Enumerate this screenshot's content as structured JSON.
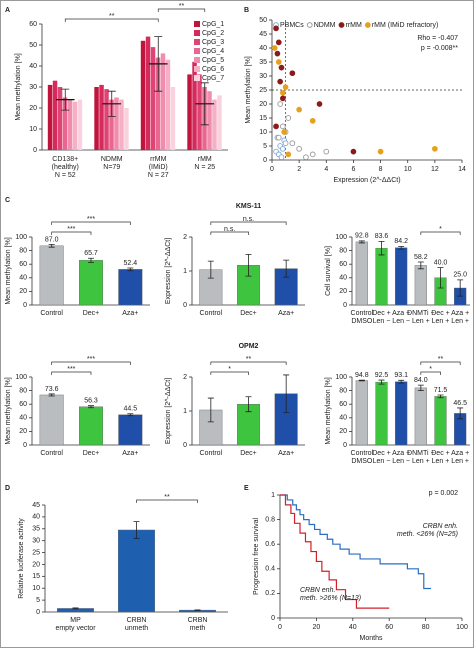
{
  "chart_data": [
    {
      "type": "grouped_bar",
      "panel": "A",
      "ylabel": "Mean methylation [%]",
      "categories": [
        "CD138+\n(healthy)\nN = 52",
        "NDMM\n\nN=79",
        "rrMM\n(IMiD)\nN = 27",
        "rMM\n\nN = 25"
      ],
      "series": [
        {
          "name": "CpG_1",
          "color": "#c0143c",
          "values": [
            31,
            30,
            52,
            36
          ]
        },
        {
          "name": "CpG_2",
          "color": "#d42a5c",
          "values": [
            33,
            31,
            54,
            42
          ]
        },
        {
          "name": "CpG_3",
          "color": "#de4474",
          "values": [
            30,
            29,
            49,
            36
          ]
        },
        {
          "name": "CpG_4",
          "color": "#e8668f",
          "values": [
            25,
            24,
            44,
            30
          ]
        },
        {
          "name": "CpG_5",
          "color": "#f08cad",
          "values": [
            24,
            25,
            46,
            28
          ]
        },
        {
          "name": "CpG_6",
          "color": "#f5b0c6",
          "values": [
            23,
            24,
            43,
            24
          ]
        },
        {
          "name": "CpG_7",
          "color": "#fad2df",
          "values": [
            24,
            20,
            30,
            26
          ]
        }
      ],
      "means": [
        24,
        22,
        41,
        22
      ],
      "errors": [
        5,
        6,
        13,
        10
      ],
      "brackets": [
        {
          "text": "**",
          "between": [
            0,
            2
          ]
        },
        {
          "text": "**",
          "between": [
            2,
            3
          ]
        }
      ],
      "ylim": [
        0,
        60
      ],
      "yticks": [
        0,
        10,
        20,
        30,
        40,
        50,
        60
      ]
    },
    {
      "type": "scatter",
      "panel": "B",
      "ylabel": "Mean methylation [%]",
      "xlabel": "Expression (2^-ΔΔCt)",
      "annotations": [
        "Rho = -0.407",
        "p = -0.008**"
      ],
      "ref_x": 1,
      "ref_y": 25,
      "series": [
        {
          "name": "PBMCs",
          "color": "#7fa8d6",
          "open": true,
          "x": [
            0.3,
            0.5,
            0.6,
            0.8,
            0.9,
            1.0,
            0.4,
            0.7
          ],
          "y": [
            3,
            2,
            5,
            4,
            7,
            6,
            8,
            1
          ]
        },
        {
          "name": "NDMM",
          "color": "#999999",
          "open": true,
          "x": [
            0.5,
            1,
            1.5,
            2,
            0.8,
            3,
            2.5,
            1.2,
            0.6,
            4
          ],
          "y": [
            8,
            10,
            6,
            4,
            12,
            2,
            1,
            15,
            20,
            3
          ]
        },
        {
          "name": "rrMM",
          "color": "#8b1a1a",
          "open": false,
          "x": [
            0.3,
            0.5,
            0.4,
            0.7,
            1.5,
            0.6,
            0.8,
            3.5,
            6,
            0.3
          ],
          "y": [
            47,
            42,
            38,
            33,
            31,
            28,
            22,
            20,
            3,
            12
          ]
        },
        {
          "name": "rMM (IMiD refractory)",
          "color": "#e6a020",
          "open": false,
          "x": [
            0.2,
            0.5,
            1,
            2,
            3,
            8,
            12,
            0.8,
            0.9,
            1.2
          ],
          "y": [
            40,
            35,
            26,
            18,
            14,
            3,
            4,
            24,
            10,
            2
          ]
        }
      ],
      "xlim": [
        0,
        14
      ],
      "xticks": [
        0,
        2,
        4,
        6,
        8,
        10,
        12,
        14
      ],
      "ylim": [
        0,
        50
      ],
      "yticks": [
        0,
        5,
        10,
        15,
        20,
        25,
        30,
        35,
        40,
        45,
        50
      ]
    },
    {
      "type": "bar",
      "panel": "C",
      "ylabel": "Mean methylation [%]",
      "categories": [
        "Control",
        "Dec+",
        "Aza+"
      ],
      "values": [
        87.0,
        65.7,
        52.4
      ],
      "value_labels": [
        "87.0",
        "65.7",
        "52.4"
      ],
      "errors": [
        2,
        3,
        2
      ],
      "colors": [
        "#b9bdc0",
        "#3ec43e",
        "#1f4fa8"
      ],
      "brackets": [
        {
          "text": "***",
          "between": [
            0,
            1
          ]
        },
        {
          "text": "***",
          "between": [
            0,
            2
          ]
        }
      ],
      "ylim": [
        0,
        100
      ],
      "yticks": [
        0,
        20,
        40,
        60,
        80,
        100
      ]
    },
    {
      "type": "bar",
      "title": "KMS-11",
      "ylabel": "Expression [2^-ΔΔCt]",
      "categories": [
        "Control",
        "Dec+",
        "Aza+"
      ],
      "values": [
        1.04,
        1.17,
        1.07
      ],
      "errors": [
        0.25,
        0.32,
        0.25
      ],
      "colors": [
        "#b9bdc0",
        "#3ec43e",
        "#1f4fa8"
      ],
      "brackets": [
        {
          "text": "n.s.",
          "between": [
            0,
            1
          ]
        },
        {
          "text": "n.s.",
          "between": [
            0,
            2
          ]
        }
      ],
      "ylim": [
        0,
        2
      ],
      "yticks": [
        0,
        1,
        2
      ]
    },
    {
      "type": "bar",
      "ylabel": "Cell survival [%]",
      "categories": [
        "Control\nDMSO",
        "Dec +\nLen −",
        "Aza +\nLen −",
        "DNMTi −\nLen +",
        "Dec +\nLen +",
        "Aza +\nLen +"
      ],
      "values": [
        92.8,
        83.6,
        84.2,
        58.2,
        40.0,
        25.0
      ],
      "value_labels": [
        "92.8",
        "83.6",
        "84.2",
        "58.2",
        "40.0",
        "25.0"
      ],
      "errors": [
        1.5,
        10,
        2,
        5,
        15,
        12
      ],
      "colors": [
        "#b9bdc0",
        "#3ec43e",
        "#1f4fa8",
        "#b9bdc0",
        "#3ec43e",
        "#1f4fa8"
      ],
      "brackets": [
        {
          "text": "*",
          "between": [
            3,
            5
          ]
        }
      ],
      "ylim": [
        0,
        100
      ],
      "yticks": [
        0,
        20,
        40,
        60,
        80,
        100
      ]
    },
    {
      "type": "bar",
      "ylabel": "Mean methylation [%]",
      "categories": [
        "Control",
        "Dec+",
        "Aza+"
      ],
      "values": [
        73.6,
        56.3,
        44.5
      ],
      "value_labels": [
        "73.6",
        "56.3",
        "44.5"
      ],
      "errors": [
        1.5,
        1.5,
        1.5
      ],
      "colors": [
        "#b9bdc0",
        "#3ec43e",
        "#1f4fa8"
      ],
      "brackets": [
        {
          "text": "***",
          "between": [
            0,
            1
          ]
        },
        {
          "text": "***",
          "between": [
            0,
            2
          ]
        }
      ],
      "ylim": [
        0,
        100
      ],
      "yticks": [
        0,
        20,
        40,
        60,
        80,
        100
      ]
    },
    {
      "type": "bar",
      "title": "OPM2",
      "ylabel": "Expression [2^-ΔΔCt]",
      "categories": [
        "Control",
        "Dec+",
        "Aza+"
      ],
      "values": [
        1.03,
        1.2,
        1.51
      ],
      "errors": [
        0.35,
        0.22,
        0.55
      ],
      "colors": [
        "#b9bdc0",
        "#3ec43e",
        "#1f4fa8"
      ],
      "brackets": [
        {
          "text": "*",
          "between": [
            0,
            1
          ]
        },
        {
          "text": "**",
          "between": [
            0,
            2
          ]
        }
      ],
      "ylim": [
        0,
        2
      ],
      "yticks": [
        0,
        1,
        2
      ]
    },
    {
      "type": "bar",
      "ylabel": "Mean methylation [%]",
      "categories": [
        "Control\nDMSO",
        "Dec +\nLen −",
        "Aza +\nLen −",
        "DNMTi −\nLen +",
        "Dec +\nLen +",
        "Aza +\nLen +"
      ],
      "values": [
        94.8,
        92.5,
        93.1,
        84.0,
        71.5,
        46.5
      ],
      "value_labels": [
        "94.8",
        "92.5",
        "93.1",
        "84.0",
        "71.5",
        "46.5"
      ],
      "errors": [
        0.5,
        3,
        2,
        4,
        2,
        8
      ],
      "colors": [
        "#b9bdc0",
        "#3ec43e",
        "#1f4fa8",
        "#b9bdc0",
        "#3ec43e",
        "#1f4fa8"
      ],
      "brackets": [
        {
          "text": "*",
          "between": [
            3,
            4
          ]
        },
        {
          "text": "**",
          "between": [
            3,
            5
          ]
        }
      ],
      "ylim": [
        0,
        100
      ],
      "yticks": [
        0,
        20,
        40,
        60,
        80,
        100
      ]
    },
    {
      "type": "bar",
      "panel": "D",
      "ylabel": "Relative luciferase activity",
      "categories": [
        "MP\nempty vector",
        "CRBN\nunmeth",
        "CRBN\nmeth"
      ],
      "values": [
        1.5,
        34.5,
        0.8
      ],
      "errors": [
        0.2,
        3.5,
        0.1
      ],
      "colors": [
        "#1f5fb0",
        "#1f5fb0",
        "#1f5fb0"
      ],
      "brackets": [
        {
          "text": "**",
          "between": [
            1,
            2
          ]
        }
      ],
      "ylim": [
        0,
        45
      ],
      "yticks": [
        0,
        5,
        10,
        15,
        20,
        25,
        30,
        35,
        40,
        45
      ]
    },
    {
      "type": "line",
      "panel": "E",
      "ylabel": "Progression free survival",
      "xlabel": "Months",
      "annotations": [
        "p = 0.002"
      ],
      "series": [
        {
          "name": "CRBN enh.\nmeth. <26% (N=25)",
          "color": "#2a6ec0",
          "x": [
            0,
            4,
            4,
            7,
            7,
            9,
            9,
            11,
            11,
            13,
            13,
            16,
            16,
            19,
            19,
            22,
            22,
            26,
            26,
            29,
            29,
            33,
            33,
            38,
            38,
            44,
            44,
            55,
            55,
            70,
            70,
            76,
            76,
            79,
            79,
            83
          ],
          "y": [
            1,
            1,
            0.96,
            0.96,
            0.92,
            0.92,
            0.88,
            0.88,
            0.84,
            0.84,
            0.8,
            0.8,
            0.76,
            0.76,
            0.72,
            0.72,
            0.68,
            0.68,
            0.64,
            0.64,
            0.6,
            0.6,
            0.56,
            0.56,
            0.52,
            0.52,
            0.48,
            0.48,
            0.44,
            0.44,
            0.4,
            0.4,
            0.36,
            0.36,
            0.24,
            0.24
          ]
        },
        {
          "name": "CRBN enh.\nmeth. >26% (N=13)",
          "color": "#d0202a",
          "x": [
            0,
            3,
            3,
            6,
            6,
            8,
            8,
            11,
            11,
            14,
            14,
            17,
            17,
            20,
            20,
            23,
            23,
            27,
            27,
            31,
            31,
            36,
            36,
            42,
            42,
            60
          ],
          "y": [
            1,
            1,
            0.92,
            0.92,
            0.85,
            0.85,
            0.77,
            0.77,
            0.69,
            0.69,
            0.62,
            0.62,
            0.54,
            0.54,
            0.46,
            0.46,
            0.38,
            0.38,
            0.31,
            0.31,
            0.23,
            0.23,
            0.15,
            0.15,
            0.08,
            0.08
          ]
        }
      ],
      "xlim": [
        0,
        100
      ],
      "xticks": [
        0,
        20,
        40,
        60,
        80,
        100
      ],
      "ylim": [
        0,
        1
      ],
      "yticks": [
        0,
        0.2,
        0.4,
        0.6,
        0.8,
        1
      ]
    }
  ]
}
